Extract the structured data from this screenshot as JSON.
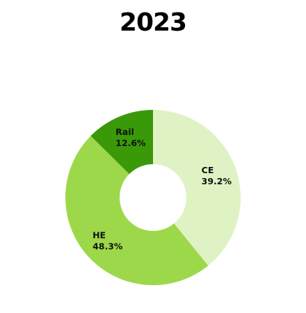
{
  "chart_data": {
    "type": "pie",
    "donut": true,
    "title": "2023",
    "slices": [
      {
        "label": "CE",
        "value": 39.2,
        "display": "39.2%",
        "color": "#dff2c4"
      },
      {
        "label": "HE",
        "value": 48.3,
        "display": "48.3%",
        "color": "#9dd84a"
      },
      {
        "label": "Rail",
        "value": 12.6,
        "display": "12.6%",
        "color": "#3a9908"
      }
    ]
  }
}
